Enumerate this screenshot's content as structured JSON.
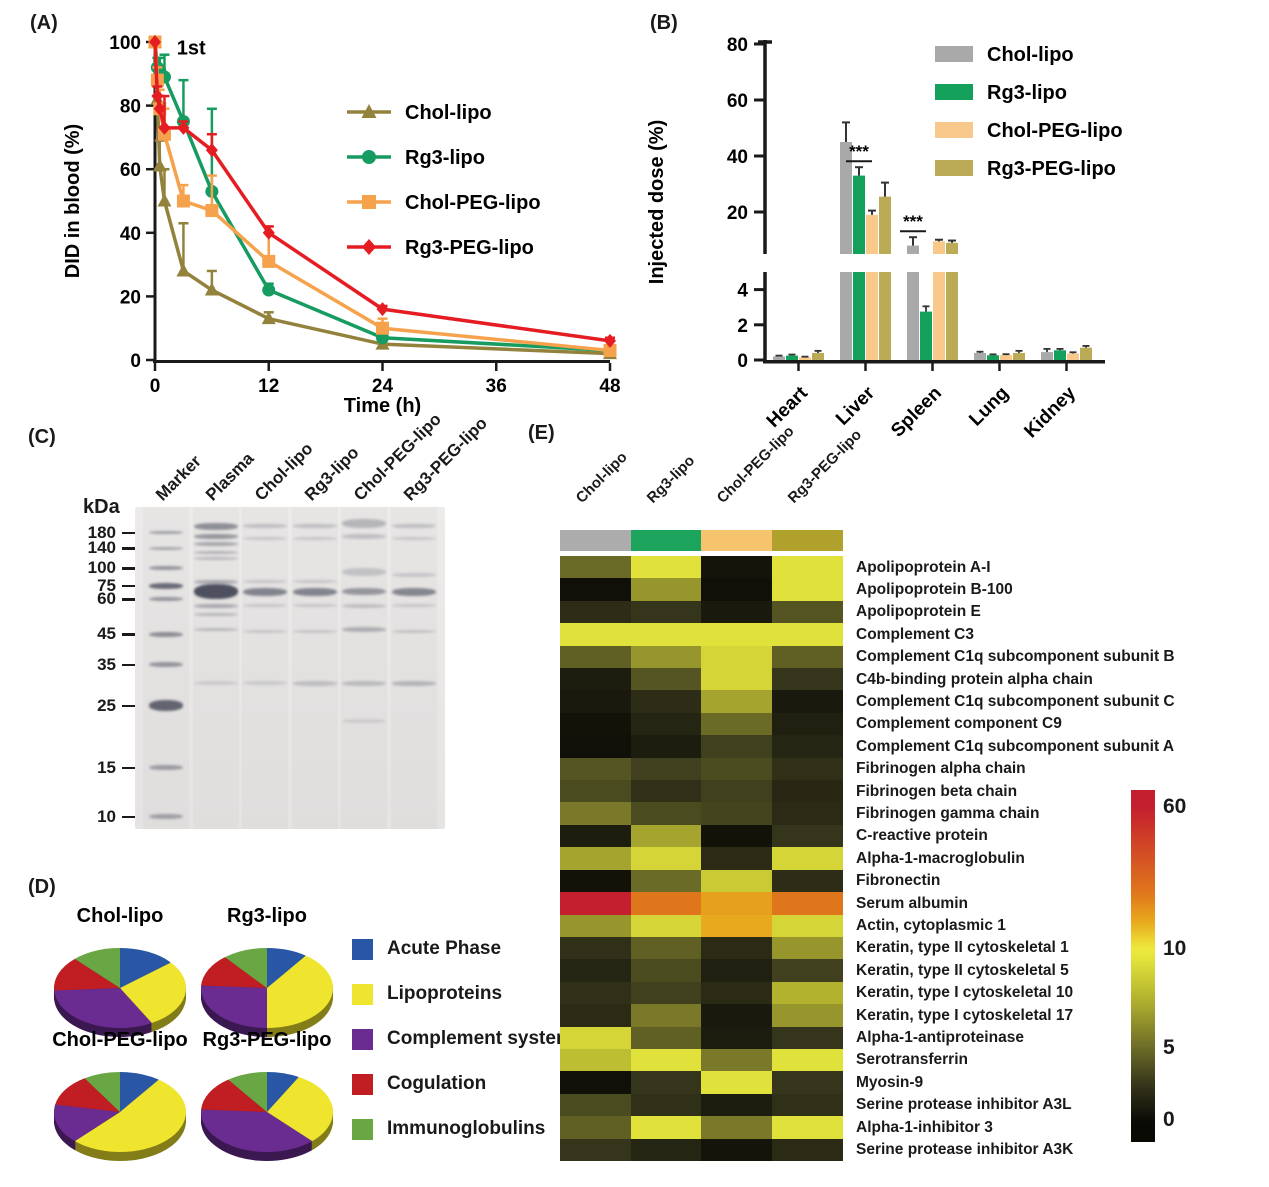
{
  "figure": {
    "panel_labels": {
      "a": "(A)",
      "b": "(B)",
      "c": "(C)",
      "d": "(D)",
      "e": "(E)"
    }
  },
  "chart_data": [
    {
      "id": "blood-clearance",
      "type": "line",
      "xlabel": "Time (h)",
      "ylabel": "DID in blood (%)",
      "annotation": "1st",
      "xlim": [
        0,
        48
      ],
      "ylim": [
        0,
        100
      ],
      "xticks": [
        0,
        12,
        24,
        36,
        48
      ],
      "yticks": [
        0,
        20,
        40,
        60,
        80,
        100
      ],
      "x": [
        0,
        0.25,
        0.5,
        1,
        3,
        6,
        12,
        24,
        48
      ],
      "series": [
        {
          "name": "Chol-lipo",
          "color": "#92823C",
          "marker": "triangle",
          "values": [
            100,
            82,
            61,
            50,
            28,
            22,
            13,
            5,
            2
          ],
          "errors": [
            2,
            5,
            8,
            10,
            15,
            6,
            2,
            1,
            1
          ]
        },
        {
          "name": "Rg3-lipo",
          "color": "#169C60",
          "marker": "circle",
          "values": [
            100,
            92,
            91,
            89,
            75,
            53,
            22,
            7,
            3
          ],
          "errors": [
            2,
            3,
            4,
            7,
            13,
            26,
            2,
            1,
            1
          ]
        },
        {
          "name": "Chol-PEG-lipo",
          "color": "#F6A24C",
          "marker": "square",
          "values": [
            100,
            88,
            79,
            71,
            50,
            47,
            31,
            10,
            3
          ],
          "errors": [
            2,
            4,
            6,
            8,
            5,
            11,
            11,
            3,
            1
          ]
        },
        {
          "name": "Rg3-PEG-lipo",
          "color": "#E51D23",
          "marker": "diamond",
          "values": [
            100,
            83,
            79,
            73,
            73,
            66,
            40,
            16,
            6
          ],
          "errors": [
            2,
            3,
            4,
            10,
            2,
            5,
            2,
            1,
            1
          ]
        }
      ]
    },
    {
      "id": "biodistribution",
      "type": "bar",
      "ylabel": "Injected dose (%)",
      "categories": [
        "Heart",
        "Liver",
        "Spleen",
        "Lung",
        "Kidney"
      ],
      "axis_break": {
        "lower_range": [
          0,
          5
        ],
        "upper_range": [
          5,
          80
        ],
        "lower_ticks": [
          0,
          2,
          4
        ],
        "upper_ticks": [
          20,
          40,
          60,
          80
        ]
      },
      "series": [
        {
          "name": "Chol-lipo",
          "color": "#A9A9A9",
          "values": [
            0.2,
            45.0,
            8.0,
            0.4,
            0.45
          ],
          "errors": [
            0.05,
            7.0,
            3.0,
            0.07,
            0.18
          ]
        },
        {
          "name": "Rg3-lipo",
          "color": "#12A05B",
          "values": [
            0.25,
            33.0,
            2.75,
            0.27,
            0.55
          ],
          "errors": [
            0.06,
            3.0,
            0.3,
            0.05,
            0.08
          ]
        },
        {
          "name": "Chol-PEG-lipo",
          "color": "#F8C98A",
          "values": [
            0.15,
            19.0,
            9.5,
            0.28,
            0.37
          ],
          "errors": [
            0.04,
            1.5,
            0.6,
            0.05,
            0.07
          ]
        },
        {
          "name": "Rg3-PEG-lipo",
          "color": "#BCAB56",
          "values": [
            0.4,
            25.5,
            9.0,
            0.4,
            0.7
          ],
          "errors": [
            0.12,
            5.0,
            0.8,
            0.12,
            0.1
          ]
        }
      ],
      "significance": [
        {
          "category": "Liver",
          "label": "***",
          "bar": "Rg3-lipo"
        },
        {
          "category": "Spleen",
          "label": "***",
          "bar": "Chol-lipo"
        }
      ]
    },
    {
      "id": "protein-classes",
      "type": "pie",
      "classes": [
        "Acute Phase",
        "Lipoproteins",
        "Complement system",
        "Cogulation",
        "Immunoglobulins"
      ],
      "colors": [
        "#2A57A5",
        "#EFE42E",
        "#6B2C91",
        "#C11E24",
        "#69A744"
      ],
      "charts": [
        {
          "name": "Chol-lipo",
          "values": [
            14,
            28,
            32,
            14,
            12
          ]
        },
        {
          "name": "Rg3-lipo",
          "values": [
            10,
            40,
            26,
            13,
            11
          ]
        },
        {
          "name": "Chol-PEG-lipo",
          "values": [
            10,
            52,
            16,
            13,
            9
          ]
        },
        {
          "name": "Rg3-PEG-lipo",
          "values": [
            8,
            30,
            38,
            14,
            10
          ]
        }
      ]
    },
    {
      "id": "protein-corona-heatmap",
      "type": "heatmap",
      "columns": [
        "Chol-lipo",
        "Rg3-lipo",
        "Chol-PEG-lipo",
        "Rg3-PEG-lipo"
      ],
      "column_colors": [
        "#ACACAC",
        "#1CA45C",
        "#F6C46C",
        "#B0A02C"
      ],
      "rows": [
        "Apolipoprotein A-I",
        "Apolipoprotein B-100",
        "Apolipoprotein E",
        "Complement C3",
        "Complement C1q subcomponent subunit B",
        "C4b-binding protein alpha chain",
        "Complement C1q subcomponent subunit C",
        "Complement component C9",
        "Complement C1q subcomponent subunit A",
        "Fibrinogen alpha chain",
        "Fibrinogen beta chain",
        "Fibrinogen gamma chain",
        "C-reactive protein",
        "Alpha-1-macroglobulin",
        "Fibronectin",
        "Serum albumin",
        "Actin, cytoplasmic 1",
        "Keratin, type II cytoskeletal 1",
        "Keratin, type II cytoskeletal 5",
        "Keratin, type I cytoskeletal 10",
        "Keratin, type I cytoskeletal 17",
        "Alpha-1-antiproteinase",
        "Serotransferrin",
        "Myosin-9",
        "Serine protease inhibitor A3L",
        "Alpha-1-inhibitor 3",
        "Serine protease inhibitor A3K"
      ],
      "values": [
        [
          5,
          9.5,
          0.5,
          9.5
        ],
        [
          0.3,
          6.5,
          0.3,
          9.5
        ],
        [
          2,
          2.5,
          0.8,
          4
        ],
        [
          9.5,
          9.5,
          9.5,
          9.5
        ],
        [
          4.5,
          6.5,
          9,
          4.5
        ],
        [
          1,
          4,
          9,
          2.5
        ],
        [
          0.8,
          2,
          7,
          0.8
        ],
        [
          0.4,
          1.5,
          5,
          1.2
        ],
        [
          0.3,
          1,
          3,
          1.5
        ],
        [
          4,
          3,
          3.5,
          2.2
        ],
        [
          3.5,
          2.2,
          3,
          1.6
        ],
        [
          5.5,
          3.5,
          3.2,
          1.8
        ],
        [
          1,
          7,
          0.4,
          2.5
        ],
        [
          7,
          9,
          1.8,
          9
        ],
        [
          0.4,
          5,
          8.5,
          2
        ],
        [
          60,
          30,
          22,
          30
        ],
        [
          6.5,
          9,
          20,
          9
        ],
        [
          2.2,
          4.5,
          1.8,
          6.5
        ],
        [
          1.5,
          3.5,
          1.2,
          3
        ],
        [
          2.2,
          3,
          1.8,
          7.5
        ],
        [
          1.8,
          5.5,
          0.8,
          6.5
        ],
        [
          9,
          4.5,
          1,
          2.5
        ],
        [
          8,
          9.5,
          5.5,
          9.5
        ],
        [
          0.3,
          2.5,
          9.5,
          2.5
        ],
        [
          3.5,
          2.2,
          1,
          2.2
        ],
        [
          4.5,
          9.5,
          5.5,
          9.5
        ],
        [
          2.5,
          1.5,
          0.5,
          1.8
        ]
      ],
      "colorbar": {
        "ticks": [
          60,
          10,
          5,
          0
        ],
        "anchors": [
          [
            0,
            "#0a0a05"
          ],
          [
            1,
            "#1d1d0f"
          ],
          [
            2.5,
            "#35351b"
          ],
          [
            5,
            "#6b6b28"
          ],
          [
            7.5,
            "#b2b22f"
          ],
          [
            10,
            "#eded3e"
          ],
          [
            20,
            "#e9a91e"
          ],
          [
            30,
            "#e0761c"
          ],
          [
            60,
            "#c41f2e"
          ]
        ]
      }
    }
  ],
  "gel": {
    "unit_label": "kDa",
    "ladder": [
      180,
      140,
      100,
      75,
      60,
      45,
      35,
      25,
      15,
      10
    ],
    "band_fields": "[kDa, intensity, thickness_px]",
    "lanes": [
      {
        "name": "Marker",
        "bands": [
          [
            180,
            0.45,
            3
          ],
          [
            140,
            0.4,
            3
          ],
          [
            100,
            0.5,
            4
          ],
          [
            75,
            0.78,
            6
          ],
          [
            60,
            0.5,
            4
          ],
          [
            45,
            0.55,
            5
          ],
          [
            35,
            0.5,
            5
          ],
          [
            25,
            0.82,
            11
          ],
          [
            15,
            0.45,
            5
          ],
          [
            10,
            0.42,
            5
          ]
        ]
      },
      {
        "name": "Plasma",
        "bands": [
          [
            200,
            0.55,
            7
          ],
          [
            170,
            0.5,
            5
          ],
          [
            150,
            0.4,
            4
          ],
          [
            130,
            0.32,
            3
          ],
          [
            118,
            0.28,
            3
          ],
          [
            80,
            0.38,
            4
          ],
          [
            68,
            0.95,
            15
          ],
          [
            57,
            0.38,
            4
          ],
          [
            53,
            0.3,
            3
          ],
          [
            47,
            0.28,
            3
          ],
          [
            30,
            0.15,
            4
          ]
        ]
      },
      {
        "name": "Chol-lipo",
        "bands": [
          [
            200,
            0.25,
            4
          ],
          [
            165,
            0.2,
            3
          ],
          [
            80,
            0.2,
            3
          ],
          [
            68,
            0.62,
            8
          ],
          [
            57,
            0.2,
            3
          ],
          [
            46,
            0.2,
            3
          ],
          [
            30,
            0.16,
            4
          ]
        ]
      },
      {
        "name": "Rg3-lipo",
        "bands": [
          [
            200,
            0.25,
            4
          ],
          [
            165,
            0.2,
            3
          ],
          [
            80,
            0.2,
            3
          ],
          [
            68,
            0.62,
            8
          ],
          [
            57,
            0.2,
            3
          ],
          [
            46,
            0.2,
            3
          ],
          [
            30,
            0.24,
            5
          ]
        ]
      },
      {
        "name": "Chol-PEG-lipo",
        "bands": [
          [
            210,
            0.3,
            9
          ],
          [
            170,
            0.24,
            5
          ],
          [
            95,
            0.22,
            8
          ],
          [
            68,
            0.5,
            7
          ],
          [
            57,
            0.24,
            4
          ],
          [
            47,
            0.34,
            5
          ],
          [
            30,
            0.26,
            5
          ],
          [
            22,
            0.14,
            4
          ]
        ]
      },
      {
        "name": "Rg3-PEG-lipo",
        "bands": [
          [
            200,
            0.25,
            4
          ],
          [
            165,
            0.2,
            3
          ],
          [
            90,
            0.2,
            4
          ],
          [
            68,
            0.6,
            8
          ],
          [
            57,
            0.2,
            3
          ],
          [
            46,
            0.22,
            3
          ],
          [
            30,
            0.3,
            5
          ]
        ]
      }
    ]
  }
}
